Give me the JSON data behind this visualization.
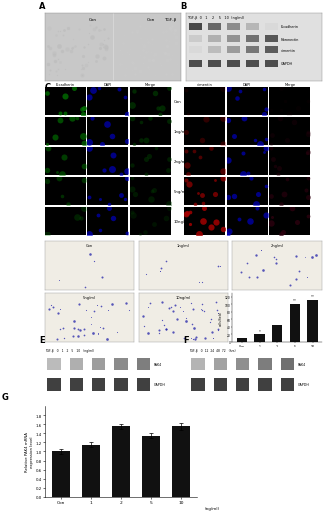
{
  "bar_values": [
    10,
    20,
    45,
    100,
    110
  ],
  "bar_labels": [
    "Con",
    "1",
    "2",
    "5",
    "10"
  ],
  "bar_xlabel": "(ng/ml)",
  "bar_ylabel": "cells/field",
  "bar_yticks": [
    0,
    20,
    40,
    60,
    80,
    100,
    120
  ],
  "bar_ylim": [
    0,
    130
  ],
  "bar_color": "#111111",
  "G_bar_values": [
    1.0,
    1.15,
    1.55,
    1.35,
    1.55
  ],
  "G_bar_labels": [
    "Con",
    "1",
    "2",
    "5",
    "10"
  ],
  "G_bar_xlabel": "(ng/ml)",
  "G_bar_ylabel": "Relative PAK4 mRNA\nexpression level",
  "G_bar_color": "#111111",
  "G_bar_ylim": [
    0,
    2.0
  ],
  "G_bar_yticks": [
    0,
    0.2,
    0.4,
    0.6,
    0.8,
    1.0,
    1.2,
    1.4,
    1.6,
    1.8
  ],
  "G_error_bars": [
    0.05,
    0.06,
    0.06,
    0.05,
    0.07
  ],
  "background": "#ffffff",
  "A_bg": "#c8c8c8",
  "B_bg": "#e0e0e0",
  "C_left_colors": [
    "#007700",
    "#0000cc",
    "#004400"
  ],
  "C_right_colors": [
    "#aa0000",
    "#0000cc",
    "#330011"
  ],
  "D_bg": "#f0ede5",
  "D_cell_color": "#2222aa",
  "D_counts": [
    5,
    8,
    18,
    35,
    45
  ],
  "E_pak4_intensities": [
    0.38,
    0.45,
    0.55,
    0.65,
    0.72
  ],
  "F_pak4_intensities": [
    0.42,
    0.52,
    0.63,
    0.73,
    0.8
  ],
  "gapdh_intensity": 0.88,
  "band_gray_gapdh": "0.15",
  "E_header": "TGF-β   0   1   2   5   10   (ng/ml)",
  "F_header": "TGF-β   0  12  24  48  72   (hrs)"
}
